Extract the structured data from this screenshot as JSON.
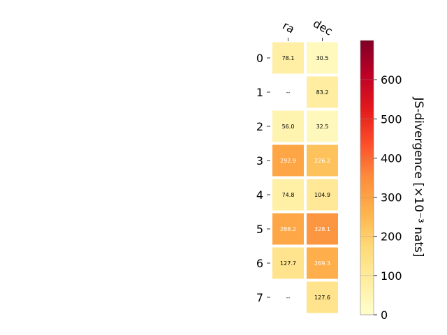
{
  "chart_data": {
    "type": "heatmap",
    "columns": [
      "ra",
      "dec"
    ],
    "rows": [
      "0",
      "1",
      "2",
      "3",
      "4",
      "5",
      "6",
      "7"
    ],
    "values": [
      [
        78.1,
        30.5
      ],
      [
        null,
        83.2
      ],
      [
        56.0,
        32.5
      ],
      [
        292.9,
        226.2
      ],
      [
        74.8,
        104.9
      ],
      [
        288.2,
        328.1
      ],
      [
        127.7,
        269.3
      ],
      [
        null,
        127.6
      ]
    ],
    "cell_labels": [
      [
        "78.1",
        "30.5"
      ],
      [
        "--",
        "83.2"
      ],
      [
        "56.0",
        "32.5"
      ],
      [
        "292.9",
        "226.2"
      ],
      [
        "74.8",
        "104.9"
      ],
      [
        "288.2",
        "328.1"
      ],
      [
        "127.7",
        "269.3"
      ],
      [
        "--",
        "127.6"
      ]
    ],
    "colorbar": {
      "label": "JS-divergence [×10⁻³ nats]",
      "range": [
        0,
        700
      ],
      "ticks": [
        0,
        100,
        200,
        300,
        400,
        500,
        600
      ],
      "colormap": "YlOrRd"
    }
  }
}
